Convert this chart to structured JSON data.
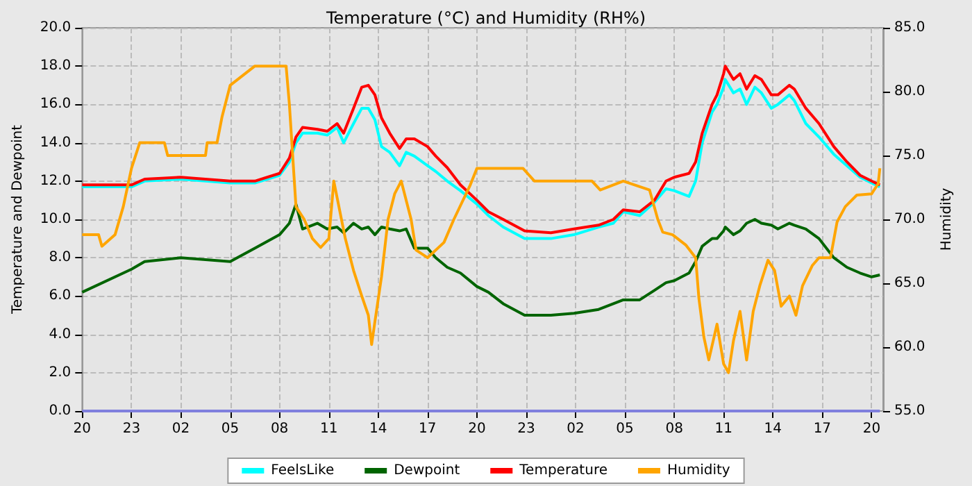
{
  "chart_data": {
    "type": "line",
    "title": "Temperature (°C) and Humidity (RH%)",
    "ylabel": "Temperature and Dewpoint",
    "y2label": "Humidity",
    "x": [
      "--01-01T20:00",
      "--01-01T23:00",
      "--01-01T23:48",
      "--01-02T02:00",
      "--01-02T05:00",
      "--01-02T06:30",
      "--01-02T08:00",
      "--01-02T08:36",
      "--01-02T09:00",
      "--01-02T09:24",
      "--01-02T10:18",
      "--01-02T10:54",
      "--01-02T11:30",
      "--01-02T11:54",
      "--01-02T12:30",
      "--01-02T13:00",
      "--01-02T13:24",
      "--01-02T13:48",
      "--01-02T14:12",
      "--01-02T14:42",
      "--01-02T15:18",
      "--01-02T15:42",
      "--01-02T16:12",
      "--01-02T17:00",
      "--01-02T17:30",
      "--01-02T18:12",
      "--01-02T19:00",
      "--01-02T20:00",
      "--01-02T20:42",
      "--01-02T21:36",
      "--01-02T22:54",
      "--01-03T00:30",
      "--01-03T01:54",
      "--01-03T03:24",
      "--01-03T04:18",
      "--01-03T04:54",
      "--01-03T05:54",
      "--01-03T06:48",
      "--01-03T07:30",
      "--01-03T08:00",
      "--01-03T08:54",
      "--01-03T09:18",
      "--01-03T09:42",
      "--01-03T10:18",
      "--01-03T10:36",
      "--01-03T11:00",
      "--01-03T11:06",
      "--01-03T11:36",
      "--01-03T12:00",
      "--01-03T12:24",
      "--01-03T12:54",
      "--01-03T13:18",
      "--01-03T13:54",
      "--01-03T14:18",
      "--01-03T15:00",
      "--01-03T15:18",
      "--01-03T16:00",
      "--01-03T16:48",
      "--01-03T17:42",
      "--01-03T18:30",
      "--01-03T19:18",
      "--01-03T20:00",
      "--01-03T20:30"
    ],
    "series": [
      {
        "name": "FeelsLike",
        "color": "#00ffff",
        "values": [
          11.7,
          11.7,
          12.0,
          12.1,
          11.9,
          11.9,
          12.3,
          13.0,
          14.0,
          14.5,
          14.5,
          14.4,
          14.8,
          14.0,
          15.0,
          15.8,
          15.8,
          15.2,
          13.8,
          13.5,
          12.8,
          13.5,
          13.3,
          12.8,
          12.5,
          12.0,
          11.5,
          10.8,
          10.2,
          9.6,
          9.0,
          9.0,
          9.2,
          9.6,
          9.8,
          10.4,
          10.2,
          10.9,
          11.6,
          11.5,
          11.2,
          12.0,
          14.0,
          15.6,
          16.0,
          16.9,
          17.3,
          16.6,
          16.8,
          16.0,
          16.9,
          16.6,
          15.8,
          16.0,
          16.5,
          16.2,
          15.0,
          14.3,
          13.4,
          12.8,
          12.2,
          11.9,
          11.7
        ]
      },
      {
        "name": "Dewpoint",
        "color": "#006400",
        "values": [
          6.2,
          7.4,
          7.8,
          8.0,
          7.8,
          8.5,
          9.2,
          9.8,
          10.8,
          9.5,
          9.8,
          9.5,
          9.6,
          9.3,
          9.8,
          9.5,
          9.6,
          9.2,
          9.6,
          9.5,
          9.4,
          9.5,
          8.5,
          8.5,
          8.0,
          7.5,
          7.2,
          6.5,
          6.2,
          5.6,
          5.0,
          5.0,
          5.1,
          5.3,
          5.6,
          5.8,
          5.8,
          6.3,
          6.7,
          6.8,
          7.2,
          7.8,
          8.6,
          9.0,
          9.0,
          9.4,
          9.6,
          9.2,
          9.4,
          9.8,
          10.0,
          9.8,
          9.7,
          9.5,
          9.8,
          9.7,
          9.5,
          9.0,
          8.0,
          7.5,
          7.2,
          7.0,
          7.1
        ]
      },
      {
        "name": "Temperature",
        "color": "#ff0000",
        "values": [
          11.8,
          11.8,
          12.1,
          12.2,
          12.0,
          12.0,
          12.4,
          13.2,
          14.3,
          14.8,
          14.7,
          14.6,
          15.0,
          14.5,
          15.8,
          16.9,
          17.0,
          16.5,
          15.3,
          14.5,
          13.7,
          14.2,
          14.2,
          13.8,
          13.3,
          12.7,
          11.8,
          11.0,
          10.4,
          10.0,
          9.4,
          9.3,
          9.5,
          9.7,
          10.0,
          10.5,
          10.4,
          11.0,
          12.0,
          12.2,
          12.4,
          13.0,
          14.5,
          16.0,
          16.5,
          17.6,
          18.0,
          17.3,
          17.6,
          16.8,
          17.5,
          17.3,
          16.5,
          16.5,
          17.0,
          16.8,
          15.8,
          15.0,
          13.8,
          13.0,
          12.3,
          12.0,
          11.8
        ]
      },
      {
        "name": "Humidity",
        "color": "#ffa500",
        "axis": "y2",
        "x": [
          "--01-01T20:00",
          "--01-01T21:00",
          "--01-01T21:12",
          "--01-01T22:00",
          "--01-01T22:30",
          "--01-01T23:00",
          "--01-01T23:30",
          "--01-02T01:00",
          "--01-02T01:12",
          "--01-02T03:30",
          "--01-02T03:36",
          "--01-02T04:12",
          "--01-02T04:30",
          "--01-02T05:00",
          "--01-02T05:30",
          "--01-02T06:30",
          "--01-02T08:24",
          "--01-02T08:36",
          "--01-02T08:48",
          "--01-02T09:00",
          "--01-02T09:30",
          "--01-02T10:00",
          "--01-02T10:30",
          "--01-02T11:00",
          "--01-02T11:18",
          "--01-02T12:00",
          "--01-02T12:30",
          "--01-02T13:00",
          "--01-02T13:24",
          "--01-02T13:36",
          "--01-02T13:48",
          "--01-02T14:12",
          "--01-02T14:36",
          "--01-02T15:00",
          "--01-02T15:24",
          "--01-02T16:00",
          "--01-02T16:18",
          "--01-02T17:00",
          "--01-02T18:00",
          "--01-02T18:36",
          "--01-02T19:36",
          "--01-02T20:00",
          "--01-02T22:48",
          "--01-02T23:30",
          "--01-03T00:12",
          "--01-03T03:00",
          "--01-03T03:30",
          "--01-03T04:54",
          "--01-03T06:30",
          "--01-03T07:00",
          "--01-03T07:18",
          "--01-03T07:54",
          "--01-03T08:42",
          "--01-03T09:18",
          "--01-03T09:30",
          "--01-03T09:48",
          "--01-03T10:06",
          "--01-03T10:36",
          "--01-03T11:00",
          "--01-03T11:18",
          "--01-03T11:36",
          "--01-03T12:00",
          "--01-03T12:24",
          "--01-03T12:48",
          "--01-03T13:12",
          "--01-03T13:42",
          "--01-03T14:06",
          "--01-03T14:30",
          "--01-03T15:00",
          "--01-03T15:24",
          "--01-03T15:48",
          "--01-03T16:24",
          "--01-03T16:48",
          "--01-03T17:30",
          "--01-03T17:54",
          "--01-03T18:24",
          "--01-03T19:06",
          "--01-03T20:00",
          "--01-03T20:24",
          "--01-03T20:30"
        ],
        "values": [
          68.8,
          68.8,
          67.9,
          68.8,
          71,
          74,
          76,
          76,
          75,
          75,
          76,
          76,
          78,
          80.5,
          81,
          82,
          82,
          79,
          75,
          71,
          70,
          68.5,
          67.8,
          68.5,
          73,
          68.5,
          66,
          64,
          62.5,
          60.2,
          62,
          65.5,
          70,
          72,
          73,
          70,
          67.6,
          67,
          68.2,
          70,
          72.7,
          74,
          74,
          73,
          73,
          73,
          72.3,
          73,
          72.3,
          70,
          69,
          68.8,
          68,
          67,
          63.8,
          60.8,
          59,
          61.8,
          58.7,
          58,
          60.5,
          62.8,
          59,
          62.8,
          64.8,
          66.8,
          66,
          63.2,
          64,
          62.5,
          64.8,
          66.4,
          67,
          67,
          69.8,
          71,
          71.9,
          72,
          72.8,
          74
        ]
      },
      {
        "color": "#7f7fdd",
        "x": [
          "--01-01T20:00",
          "--01-03T20:30"
        ],
        "values": [
          0,
          0
        ]
      }
    ],
    "xlim": [
      "--01-01T20:00",
      "--01-03T20:42"
    ],
    "xticks": [
      {
        "value": "--01-01T20:00",
        "label": "20"
      },
      {
        "value": "--01-01T23:00",
        "label": "23"
      },
      {
        "value": "--01-02T02:00",
        "label": "02"
      },
      {
        "value": "--01-02T05:00",
        "label": "05"
      },
      {
        "value": "--01-02T08:00",
        "label": "08"
      },
      {
        "value": "--01-02T11:00",
        "label": "11"
      },
      {
        "value": "--01-02T14:00",
        "label": "14"
      },
      {
        "value": "--01-02T17:00",
        "label": "17"
      },
      {
        "value": "--01-02T20:00",
        "label": "20"
      },
      {
        "value": "--01-02T23:00",
        "label": "23"
      },
      {
        "value": "--01-03T02:00",
        "label": "02"
      },
      {
        "value": "--01-03T05:00",
        "label": "05"
      },
      {
        "value": "--01-03T08:00",
        "label": "08"
      },
      {
        "value": "--01-03T11:00",
        "label": "11"
      },
      {
        "value": "--01-03T14:00",
        "label": "14"
      },
      {
        "value": "--01-03T17:00",
        "label": "17"
      },
      {
        "value": "--01-03T20:00",
        "label": "20"
      }
    ],
    "ylim": [
      0,
      20
    ],
    "yticks": [
      {
        "value": 0,
        "label": "0.0"
      },
      {
        "value": 2,
        "label": "2.0"
      },
      {
        "value": 4,
        "label": "4.0"
      },
      {
        "value": 6,
        "label": "6.0"
      },
      {
        "value": 8,
        "label": "8.0"
      },
      {
        "value": 10,
        "label": "10.0"
      },
      {
        "value": 12,
        "label": "12.0"
      },
      {
        "value": 14,
        "label": "14.0"
      },
      {
        "value": 16,
        "label": "16.0"
      },
      {
        "value": 18,
        "label": "18.0"
      },
      {
        "value": 20,
        "label": "20.0"
      }
    ],
    "y2lim": [
      55,
      85
    ],
    "y2ticks": [
      {
        "value": 55,
        "label": "55.0"
      },
      {
        "value": 60,
        "label": "60.0"
      },
      {
        "value": 65,
        "label": "65.0"
      },
      {
        "value": 70,
        "label": "70.0"
      },
      {
        "value": 75,
        "label": "75.0"
      },
      {
        "value": 80,
        "label": "80.0"
      },
      {
        "value": 85,
        "label": "85.0"
      }
    ],
    "grid": true,
    "legend": "bottom",
    "marker": "none",
    "line_style": "solid"
  }
}
